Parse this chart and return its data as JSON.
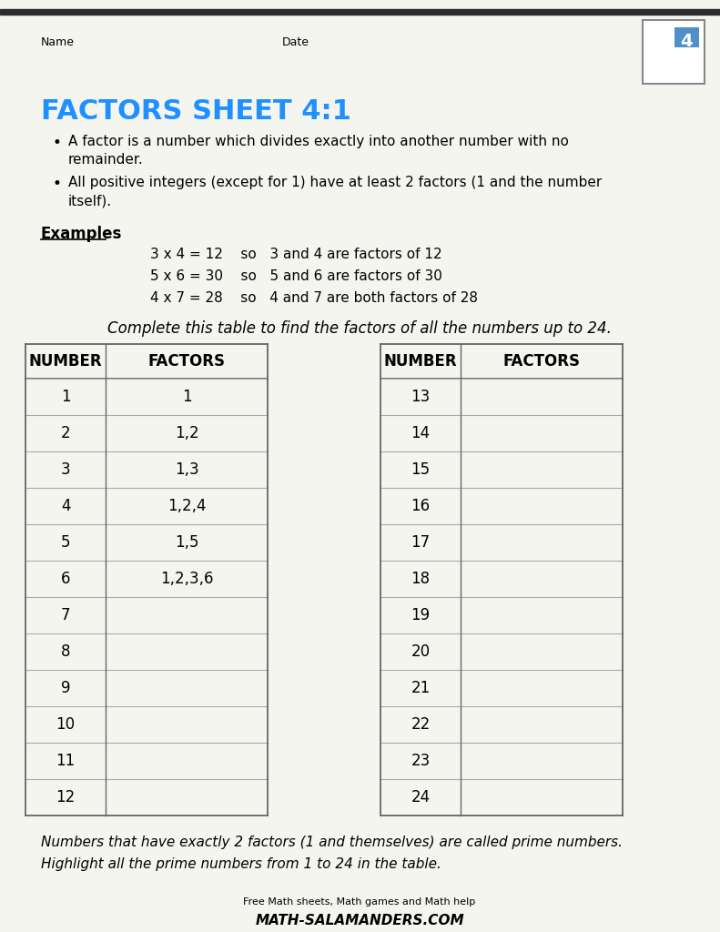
{
  "title": "FACTORS SHEET 4:1",
  "title_color": "#1e90ff",
  "bg_color": "#f5f5f0",
  "top_bar_color": "#2c2c2c",
  "name_label": "Name",
  "date_label": "Date",
  "bullet1": "A factor is a number which divides exactly into another number with no\nremainder.",
  "bullet2": "All positive integers (except for 1) have at least 2 factors (1 and the number\nitself).",
  "examples_label": "Examples",
  "examples": [
    "3 x 4 = 12    so   3 and 4 are factors of 12",
    "5 x 6 = 30    so   5 and 6 are factors of 30",
    "4 x 7 = 28    so   4 and 7 are both factors of 28"
  ],
  "instruction": "Complete this table to find the factors of all the numbers up to 24.",
  "table_left_numbers": [
    "1",
    "2",
    "3",
    "4",
    "5",
    "6",
    "7",
    "8",
    "9",
    "10",
    "11",
    "12"
  ],
  "table_left_factors": [
    "1",
    "1,2",
    "1,3",
    "1,2,4",
    "1,5",
    "1,2,3,6",
    "",
    "",
    "",
    "",
    "",
    ""
  ],
  "table_right_numbers": [
    "13",
    "14",
    "15",
    "16",
    "17",
    "18",
    "19",
    "20",
    "21",
    "22",
    "23",
    "24"
  ],
  "table_right_factors": [
    "",
    "",
    "",
    "",
    "",
    "",
    "",
    "",
    "",
    "",
    "",
    ""
  ],
  "footer1": "Numbers that have exactly 2 factors (1 and themselves) are called prime numbers.",
  "footer2": "Highlight all the prime numbers from 1 to 24 in the table.",
  "footer_website": "Free Math sheets, Math games and Math help",
  "footer_url": "ATH-SALAMANDERS.COM"
}
